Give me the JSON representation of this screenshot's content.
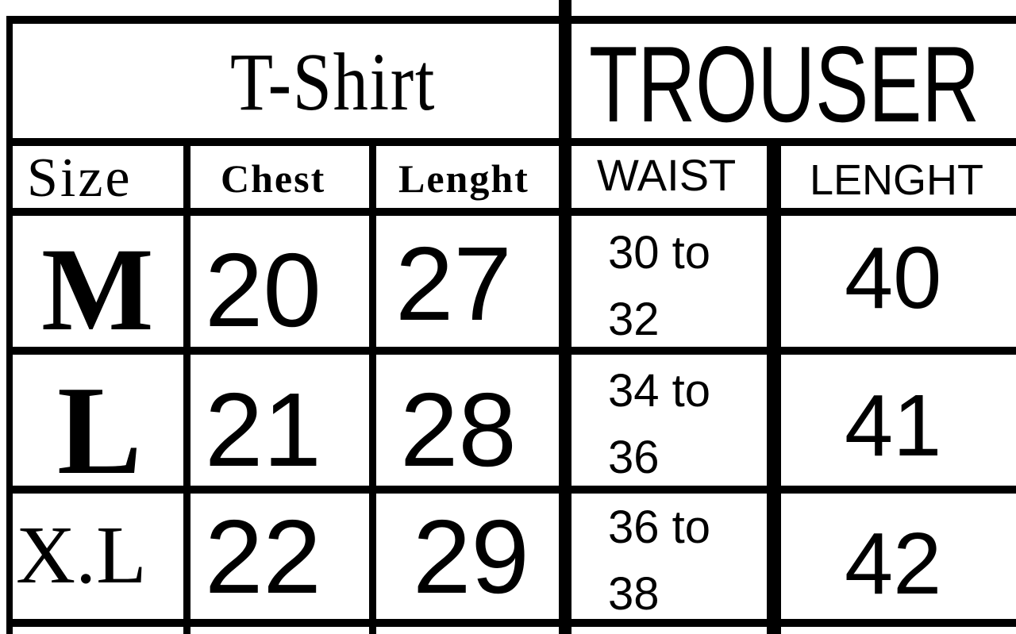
{
  "tshirt": {
    "title": "T-Shirt",
    "headers": [
      "Size",
      "Chest",
      "Lenght"
    ]
  },
  "trouser": {
    "title": "TROUSER",
    "headers": [
      "WAIST",
      "LENGHT"
    ]
  },
  "rows": [
    {
      "size": "M",
      "chest": "20",
      "length": "27",
      "waist_a": "30 to",
      "waist_b": "32",
      "trouser_length": "40"
    },
    {
      "size": "L",
      "chest": "21",
      "length": "28",
      "waist_a": "34 to",
      "waist_b": "36",
      "trouser_length": "41"
    },
    {
      "size": "X.L",
      "chest": "22",
      "length": "29",
      "waist_a": "36 to",
      "waist_b": "38",
      "trouser_length": "42"
    }
  ]
}
